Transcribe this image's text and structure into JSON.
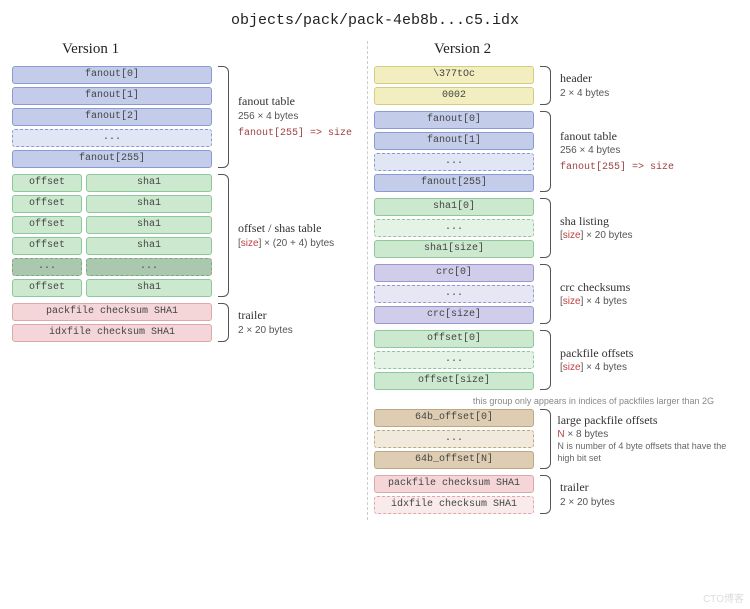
{
  "title": "objects/pack/pack-4eb8b...c5.idx",
  "watermark": "CTO博客",
  "palette": {
    "blue": {
      "fill": "#c3cdea",
      "border": "#8a9bd4"
    },
    "blue_l": {
      "fill": "#e1e6f5",
      "border": "#8a9bd4"
    },
    "green": {
      "fill": "#cce9cf",
      "border": "#8ec79a"
    },
    "green_l": {
      "fill": "#e4f3e6",
      "border": "#8ec79a"
    },
    "green_d": {
      "fill": "#a9c8ad",
      "border": "#7aa883"
    },
    "pink": {
      "fill": "#f4d6d8",
      "border": "#e0a7ab"
    },
    "pink_l": {
      "fill": "#f9ebec",
      "border": "#e0a7ab"
    },
    "yellow": {
      "fill": "#f2eec0",
      "border": "#d4cd7e"
    },
    "purple": {
      "fill": "#cfcdea",
      "border": "#9a97cf"
    },
    "purple_l": {
      "fill": "#e7e6f4",
      "border": "#9a97cf"
    },
    "tan": {
      "fill": "#decdb3",
      "border": "#bda97f"
    },
    "tan_l": {
      "fill": "#f1e9db",
      "border": "#bda97f"
    }
  },
  "v1": {
    "heading": "Version 1",
    "fanout": {
      "rows": [
        {
          "t": "fanout[0]",
          "c": "blue"
        },
        {
          "t": "fanout[1]",
          "c": "blue"
        },
        {
          "t": "fanout[2]",
          "c": "blue"
        },
        {
          "t": "...",
          "c": "blue_l",
          "d": true
        },
        {
          "t": "fanout[255]",
          "c": "blue"
        }
      ],
      "annot_t": "fanout table",
      "annot_s": "256 × 4 bytes",
      "ext": "fanout[255] => size"
    },
    "offsets": {
      "rows": [
        {
          "l": "offset",
          "r": "sha1",
          "c": "green"
        },
        {
          "l": "offset",
          "r": "sha1",
          "c": "green"
        },
        {
          "l": "offset",
          "r": "sha1",
          "c": "green"
        },
        {
          "l": "offset",
          "r": "sha1",
          "c": "green"
        },
        {
          "l": "...",
          "r": "...",
          "c": "green_d",
          "d": true
        },
        {
          "l": "offset",
          "r": "sha1",
          "c": "green"
        }
      ],
      "annot_t": "offset / shas table",
      "annot_s": "[size] × (20 + 4) bytes"
    },
    "trailer": {
      "rows": [
        {
          "t": "packfile checksum SHA1",
          "c": "pink"
        },
        {
          "t": "idxfile checksum SHA1",
          "c": "pink"
        }
      ],
      "annot_t": "trailer",
      "annot_s": "2 × 20 bytes"
    }
  },
  "v2": {
    "heading": "Version 2",
    "header": {
      "rows": [
        {
          "t": "\\377tOc",
          "c": "yellow"
        },
        {
          "t": "0002",
          "c": "yellow"
        }
      ],
      "annot_t": "header",
      "annot_s": "2 × 4 bytes"
    },
    "fanout": {
      "rows": [
        {
          "t": "fanout[0]",
          "c": "blue"
        },
        {
          "t": "fanout[1]",
          "c": "blue"
        },
        {
          "t": "...",
          "c": "blue_l",
          "d": true
        },
        {
          "t": "fanout[255]",
          "c": "blue"
        }
      ],
      "annot_t": "fanout table",
      "annot_s": "256 × 4 bytes",
      "ext": "fanout[255] => size"
    },
    "sha": {
      "rows": [
        {
          "t": "sha1[0]",
          "c": "green"
        },
        {
          "t": "...",
          "c": "green_l",
          "d": true
        },
        {
          "t": "sha1[size]",
          "c": "green"
        }
      ],
      "annot_t": "sha listing",
      "annot_s": "[size] × 20 bytes"
    },
    "crc": {
      "rows": [
        {
          "t": "crc[0]",
          "c": "purple"
        },
        {
          "t": "...",
          "c": "purple_l",
          "d": true
        },
        {
          "t": "crc[size]",
          "c": "purple"
        }
      ],
      "annot_t": "crc checksums",
      "annot_s": "[size] × 4 bytes"
    },
    "off": {
      "rows": [
        {
          "t": "offset[0]",
          "c": "green"
        },
        {
          "t": "...",
          "c": "green_l",
          "d": true
        },
        {
          "t": "offset[size]",
          "c": "green"
        }
      ],
      "annot_t": "packfile offsets",
      "annot_s": "[size] × 4 bytes"
    },
    "loff": {
      "sidenote": "this group only appears in indices\nof packfiles larger than 2G",
      "rows": [
        {
          "t": "64b_offset[0]",
          "c": "tan"
        },
        {
          "t": "...",
          "c": "tan_l",
          "d": true
        },
        {
          "t": "64b_offset[N]",
          "c": "tan"
        }
      ],
      "annot_t": "large packfile offsets",
      "annot_s": "N × 8 bytes",
      "annot_s2": "N is number of 4 byte offsets that have the high bit set"
    },
    "trailer": {
      "rows": [
        {
          "t": "packfile checksum SHA1",
          "c": "pink"
        },
        {
          "t": "idxfile checksum SHA1",
          "c": "pink_l",
          "d": true
        }
      ],
      "annot_t": "trailer",
      "annot_s": "2 × 20 bytes"
    }
  }
}
